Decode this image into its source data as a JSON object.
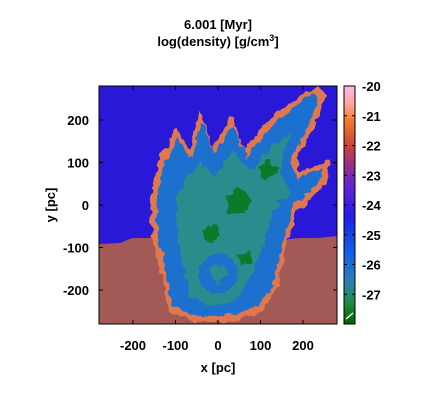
{
  "chart_data": {
    "type": "heatmap",
    "title": "6.001 [Myr]",
    "subtitle": "log(density) [g/cm",
    "subtitle_exponent": "3",
    "subtitle_close": "]",
    "xlabel": "x [pc]",
    "ylabel": "y [pc]",
    "xlim": [
      -280,
      280
    ],
    "ylim": [
      -280,
      280
    ],
    "x_ticks": [
      {
        "value": -200,
        "label": "-200"
      },
      {
        "value": -100,
        "label": "-100"
      },
      {
        "value": 0,
        "label": "0"
      },
      {
        "value": 100,
        "label": "100"
      },
      {
        "value": 200,
        "label": "200"
      }
    ],
    "y_ticks": [
      {
        "value": 200,
        "label": "200"
      },
      {
        "value": 100,
        "label": "100"
      },
      {
        "value": 0,
        "label": "0"
      },
      {
        "value": -100,
        "label": "-100"
      },
      {
        "value": -200,
        "label": "-200"
      }
    ],
    "colorbar": {
      "range": [
        -28,
        -20
      ],
      "ticks": [
        {
          "value": -20,
          "label": "-20"
        },
        {
          "value": -21,
          "label": "-21"
        },
        {
          "value": -22,
          "label": "-22"
        },
        {
          "value": -23,
          "label": "-23"
        },
        {
          "value": -24,
          "label": "-24"
        },
        {
          "value": -25,
          "label": "-25"
        },
        {
          "value": -26,
          "label": "-26"
        },
        {
          "value": -27,
          "label": "-27"
        }
      ],
      "stops": [
        {
          "value": -28,
          "color": "#006400"
        },
        {
          "value": -27.3,
          "color": "#1e8c3c"
        },
        {
          "value": -26.6,
          "color": "#2f7fb5"
        },
        {
          "value": -25.6,
          "color": "#1060e8"
        },
        {
          "value": -24.4,
          "color": "#2020e8"
        },
        {
          "value": -23.3,
          "color": "#6a22d0"
        },
        {
          "value": -22.6,
          "color": "#a0307a"
        },
        {
          "value": -22.0,
          "color": "#c8453c"
        },
        {
          "value": -21.2,
          "color": "#f07828"
        },
        {
          "value": -20.6,
          "color": "#ffa8a0"
        },
        {
          "value": -20,
          "color": "#ffb6e6"
        }
      ]
    },
    "colors": {
      "background": "#2a18d8",
      "ambient_dense": "#a35a56",
      "bubble": "#1a6fce",
      "filament": "#2a8c8c",
      "shell": "#e07850",
      "green": "#0a7a2a"
    }
  }
}
